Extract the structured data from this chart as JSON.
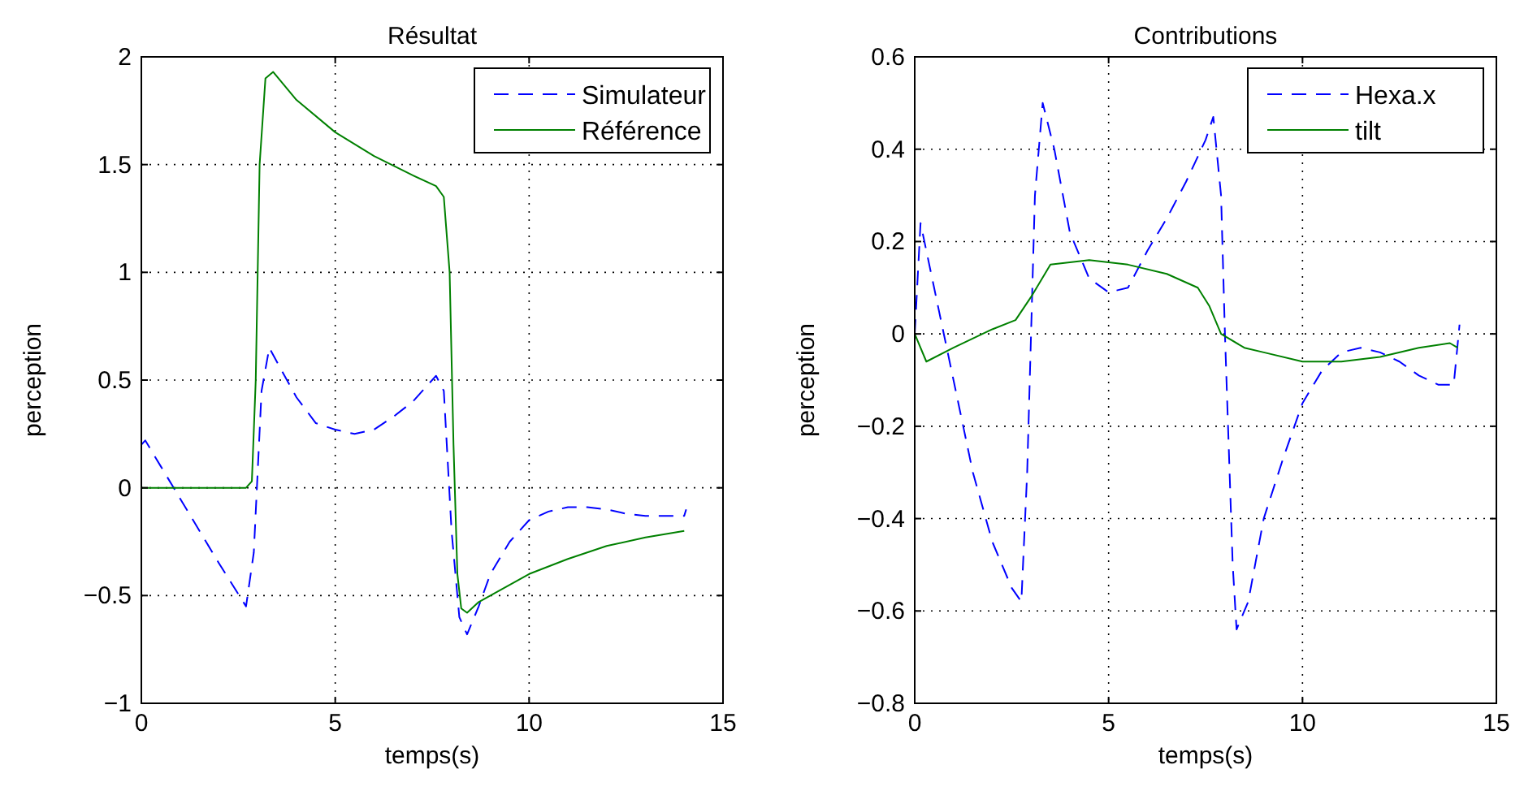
{
  "chart_data": [
    {
      "type": "line",
      "title": "Résultat",
      "xlabel": "temps(s)",
      "ylabel": "perception",
      "xlim": [
        0,
        15
      ],
      "ylim": [
        -1,
        2
      ],
      "xticks": [
        0,
        5,
        10,
        15
      ],
      "yticks": [
        {
          "value": -1,
          "label": "−1"
        },
        {
          "value": -0.5,
          "label": "−0.5"
        },
        0,
        0.5,
        1,
        1.5,
        2
      ],
      "grid": true,
      "legend": "top right",
      "series": [
        {
          "name": "Simulateur",
          "color": "#0000ff",
          "line_style": "dashed",
          "x": [
            0,
            0.1,
            0.5,
            1,
            1.5,
            2,
            2.7,
            2.9,
            3.1,
            3.3,
            3.6,
            4,
            4.5,
            5,
            5.5,
            6,
            6.5,
            7,
            7.6,
            7.8,
            8.0,
            8.2,
            8.4,
            8.7,
            9,
            9.5,
            10,
            10.5,
            11,
            11.5,
            12,
            12.5,
            13,
            13.5,
            14,
            14.05
          ],
          "values": [
            0.2,
            0.22,
            0.1,
            -0.05,
            -0.2,
            -0.35,
            -0.55,
            -0.3,
            0.45,
            0.65,
            0.55,
            0.42,
            0.3,
            0.27,
            0.25,
            0.27,
            0.33,
            0.4,
            0.52,
            0.45,
            -0.2,
            -0.6,
            -0.68,
            -0.55,
            -0.4,
            -0.25,
            -0.15,
            -0.11,
            -0.09,
            -0.09,
            -0.1,
            -0.12,
            -0.13,
            -0.13,
            -0.13,
            -0.1
          ]
        },
        {
          "name": "Référence",
          "color": "#008000",
          "line_style": "solid",
          "x": [
            0,
            1,
            2,
            2.7,
            2.85,
            2.95,
            3.05,
            3.2,
            3.4,
            4,
            5,
            6,
            7,
            7.6,
            7.8,
            7.95,
            8.05,
            8.15,
            8.25,
            8.4,
            8.7,
            9,
            10,
            11,
            12,
            13,
            14
          ],
          "values": [
            0,
            0,
            0,
            0,
            0.03,
            0.5,
            1.5,
            1.9,
            1.93,
            1.8,
            1.65,
            1.54,
            1.45,
            1.4,
            1.35,
            1.0,
            0.2,
            -0.4,
            -0.56,
            -0.58,
            -0.53,
            -0.5,
            -0.4,
            -0.33,
            -0.27,
            -0.23,
            -0.2
          ]
        }
      ]
    },
    {
      "type": "line",
      "title": "Contributions",
      "xlabel": "temps(s)",
      "ylabel": "perception",
      "xlim": [
        0,
        15
      ],
      "ylim": [
        -0.8,
        0.6
      ],
      "xticks": [
        0,
        5,
        10,
        15
      ],
      "yticks": [
        {
          "value": -0.8,
          "label": "−0.8"
        },
        {
          "value": -0.6,
          "label": "−0.6"
        },
        {
          "value": -0.4,
          "label": "−0.4"
        },
        {
          "value": -0.2,
          "label": "−0.2"
        },
        0,
        0.2,
        0.4,
        0.6
      ],
      "grid": true,
      "legend": "top right",
      "series": [
        {
          "name": "Hexa.x",
          "color": "#0000ff",
          "line_style": "dashed",
          "x": [
            0,
            0.15,
            0.5,
            1,
            1.5,
            2,
            2.5,
            2.75,
            2.9,
            3.1,
            3.3,
            3.6,
            4,
            4.5,
            5,
            5.5,
            6,
            6.5,
            7,
            7.5,
            7.7,
            7.9,
            8.0,
            8.2,
            8.3,
            8.6,
            9,
            9.5,
            10,
            10.5,
            11,
            11.5,
            12,
            12.5,
            13,
            13.5,
            13.9,
            14.05
          ],
          "values": [
            0,
            0.24,
            0.1,
            -0.1,
            -0.3,
            -0.45,
            -0.55,
            -0.58,
            -0.3,
            0.3,
            0.5,
            0.4,
            0.22,
            0.12,
            0.09,
            0.1,
            0.18,
            0.25,
            0.33,
            0.42,
            0.47,
            0.3,
            0,
            -0.5,
            -0.64,
            -0.58,
            -0.4,
            -0.27,
            -0.15,
            -0.08,
            -0.04,
            -0.03,
            -0.04,
            -0.06,
            -0.09,
            -0.11,
            -0.11,
            0.02
          ]
        },
        {
          "name": "tilt",
          "color": "#008000",
          "line_style": "solid",
          "x": [
            0,
            0.3,
            1,
            2,
            2.6,
            3,
            3.5,
            4.5,
            5.5,
            6.5,
            7.3,
            7.6,
            7.9,
            8.5,
            9,
            10,
            11,
            12,
            13,
            13.8,
            14
          ],
          "values": [
            0,
            -0.06,
            -0.03,
            0.01,
            0.03,
            0.08,
            0.15,
            0.16,
            0.15,
            0.13,
            0.1,
            0.06,
            0,
            -0.03,
            -0.04,
            -0.06,
            -0.06,
            -0.05,
            -0.03,
            -0.02,
            -0.03
          ]
        }
      ]
    }
  ]
}
